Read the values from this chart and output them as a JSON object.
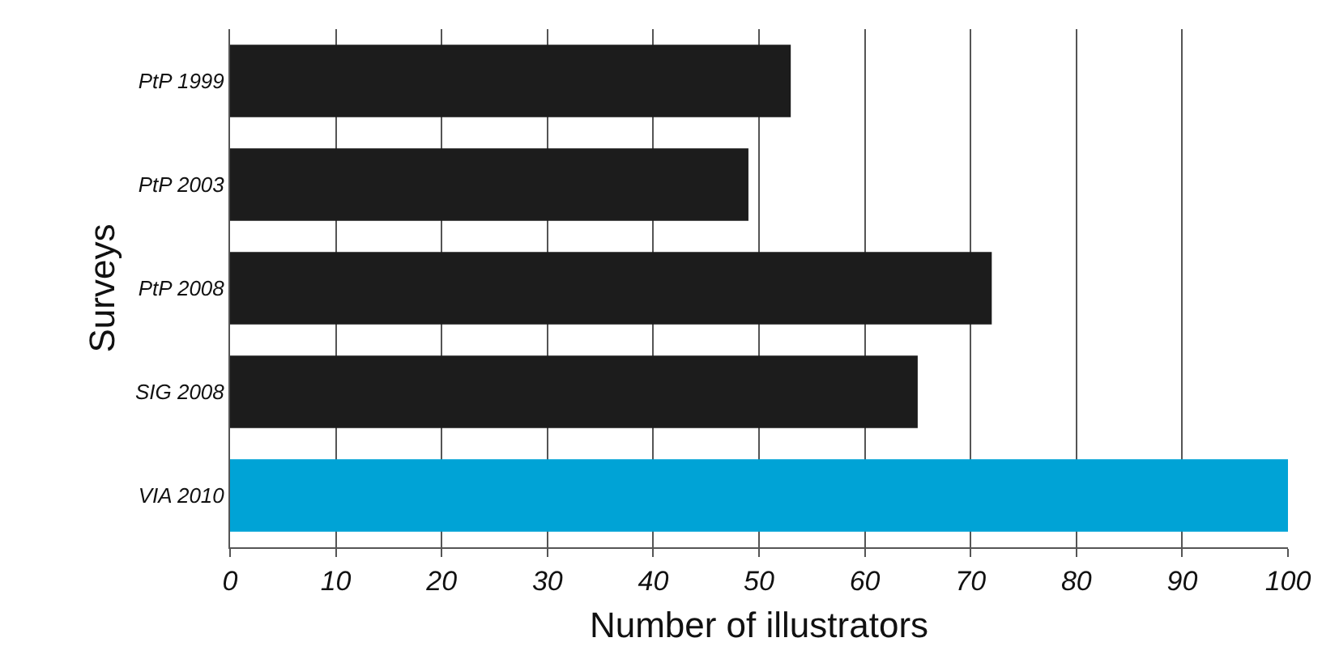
{
  "chart_data": {
    "type": "bar",
    "orientation": "horizontal",
    "categories": [
      "PtP 1999",
      "PtP 2003",
      "PtP 2008",
      "SIG 2008",
      "VIA 2010"
    ],
    "values": [
      53,
      49,
      72,
      65,
      100
    ],
    "colors": [
      "#1c1c1c",
      "#1c1c1c",
      "#1c1c1c",
      "#1c1c1c",
      "#00a3d6"
    ],
    "xlabel": "Number of illustrators",
    "ylabel": "Surveys",
    "xlim": [
      0,
      100
    ],
    "xticks": [
      0,
      10,
      20,
      30,
      40,
      50,
      60,
      70,
      80,
      90,
      100
    ],
    "grid": "x"
  }
}
